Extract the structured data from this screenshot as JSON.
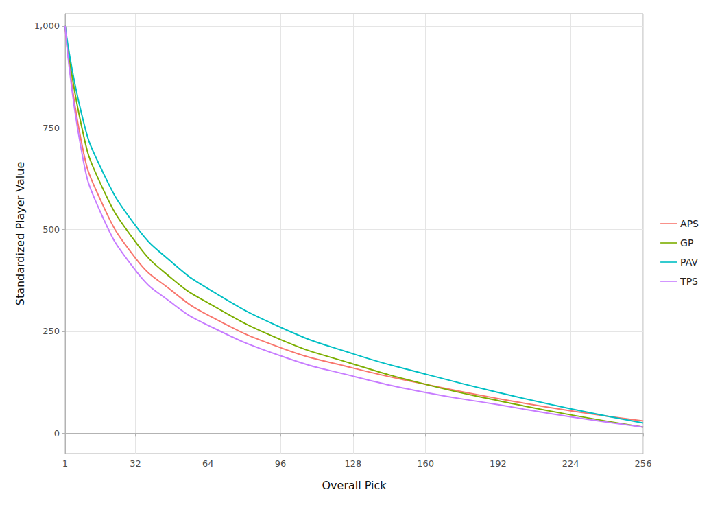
{
  "chart_data": {
    "type": "line",
    "x_label": "Overall Pick",
    "y_label": "Standardized Player Value",
    "x": [
      1,
      8,
      16,
      32,
      48,
      64,
      96,
      128,
      160,
      192,
      224,
      256
    ],
    "series": [
      {
        "name": "APS",
        "color": "#F8766D",
        "values": [
          1000,
          720,
          580,
          430,
          350,
          290,
          210,
          160,
          120,
          85,
          55,
          30
        ]
      },
      {
        "name": "GP",
        "color": "#7CAE00",
        "values": [
          1000,
          760,
          620,
          470,
          380,
          320,
          230,
          170,
          120,
          80,
          45,
          15
        ]
      },
      {
        "name": "PAV",
        "color": "#00BFC4",
        "values": [
          1000,
          790,
          660,
          510,
          420,
          355,
          260,
          195,
          145,
          100,
          60,
          25
        ]
      },
      {
        "name": "TPS",
        "color": "#C77CFF",
        "values": [
          1000,
          700,
          550,
          400,
          320,
          265,
          190,
          140,
          100,
          70,
          40,
          15
        ]
      }
    ],
    "xlim": [
      1,
      256
    ],
    "xticks": [
      1,
      32,
      64,
      96,
      128,
      160,
      192,
      224,
      256
    ],
    "ylim": [
      -50,
      1030
    ],
    "yticks": [
      0,
      250,
      500,
      750,
      1000
    ],
    "grid": true,
    "legend": "right"
  }
}
